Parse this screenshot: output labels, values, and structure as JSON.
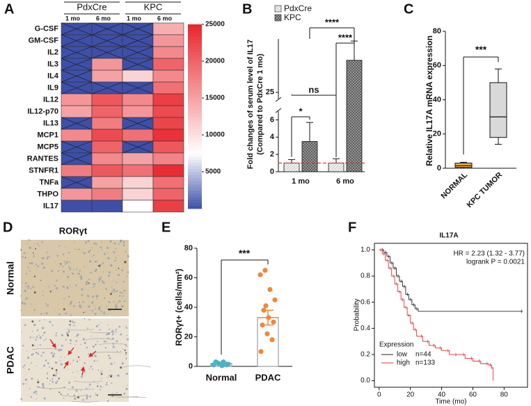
{
  "chart_data": [
    {
      "type": "heatmap",
      "panel": "A",
      "column_groups": [
        "PdxCre",
        "KPC"
      ],
      "columns": [
        "1 mo",
        "6 mo",
        "1 mo",
        "6 mo"
      ],
      "rows": [
        "G-CSF",
        "GM-CSF",
        "IL2",
        "IL3",
        "IL4",
        "IL9",
        "IL12",
        "IL12-p70",
        "IL13",
        "MCP1",
        "MCP5",
        "RANTES",
        "STNFR1",
        "TNFa",
        "THPO",
        "IL17"
      ],
      "values": [
        [
          null,
          null,
          null,
          14000
        ],
        [
          null,
          null,
          null,
          16000
        ],
        [
          null,
          null,
          null,
          17000
        ],
        [
          null,
          16000,
          null,
          20000
        ],
        [
          null,
          15000,
          11000,
          17000
        ],
        [
          null,
          null,
          null,
          19000
        ],
        [
          16000,
          21000,
          17000,
          23000
        ],
        [
          15000,
          20000,
          16000,
          22000
        ],
        [
          null,
          18000,
          null,
          22500
        ],
        [
          17000,
          22000,
          19000,
          24000
        ],
        [
          null,
          20000,
          null,
          21000
        ],
        [
          null,
          17000,
          15000,
          17500
        ],
        [
          18000,
          21000,
          19000,
          24500
        ],
        [
          null,
          15000,
          11000,
          19000
        ],
        [
          16000,
          18000,
          11000,
          20000
        ],
        [
          0,
          0,
          7500,
          23000
        ]
      ],
      "zlim": [
        0,
        25000
      ],
      "zticks": [
        5000,
        10000,
        15000,
        20000,
        25000
      ],
      "colors": [
        "#3d4fa8",
        "#ffffff",
        "#e8262d"
      ]
    },
    {
      "type": "bar",
      "panel": "B",
      "ylabel": [
        "Fold changes of serum level of IL17",
        "(Compared to PdxCre 1 mo)"
      ],
      "categories": [
        "1 mo",
        "6 mo"
      ],
      "series": [
        {
          "name": "PdxCre",
          "color": "#f0f0f0",
          "values": [
            1,
            1
          ],
          "errors": [
            0.4,
            0.5
          ]
        },
        {
          "name": "KPC",
          "color": "#5a5a5a",
          "values": [
            3.5,
            40
          ],
          "errors": [
            2.2,
            9
          ]
        }
      ],
      "ylim": [
        0,
        50
      ],
      "ybreak": [
        7,
        22
      ],
      "yticks": [
        0,
        2,
        4,
        6,
        25
      ],
      "reference_line": 1,
      "reference_color": "#d62728",
      "annotations": [
        "*",
        "ns",
        "****",
        "****"
      ]
    },
    {
      "type": "box",
      "panel": "C",
      "ylabel": "Relative IL17A mRNA expression",
      "categories": [
        "NORMAL",
        "KPC TUMOR"
      ],
      "boxes": [
        {
          "min": 0,
          "q1": 0.5,
          "median": 1.5,
          "q3": 3,
          "max": 3.5
        },
        {
          "min": 14,
          "q1": 18,
          "median": 30,
          "q3": 50,
          "max": 58
        }
      ],
      "colors": [
        "#f5b041",
        "#d9d9d9"
      ],
      "ylim": [
        0,
        80
      ],
      "yticks": [
        0,
        20,
        40,
        60,
        80
      ],
      "annotations": [
        "***"
      ]
    },
    {
      "type": "bar_scatter",
      "panel": "E",
      "ylabel": "RORγt+ (cells/mm²)",
      "categories": [
        "Normal",
        "PDAC"
      ],
      "values": [
        2,
        33
      ],
      "errors": [
        0.8,
        5
      ],
      "points": [
        [
          1,
          2,
          3,
          1.5,
          2.5,
          0.5,
          1,
          3
        ],
        [
          62,
          65,
          52,
          45,
          38,
          33,
          30,
          28,
          22,
          18,
          10,
          41
        ]
      ],
      "point_colors": [
        "#4ab3c8",
        "#f0883a"
      ],
      "ylim": [
        0,
        80
      ],
      "yticks": [
        0,
        20,
        40,
        60,
        80
      ],
      "annotations": [
        "***"
      ]
    },
    {
      "type": "line",
      "panel": "F",
      "step": true,
      "title": "IL17A",
      "xlabel": "Time (mo)",
      "ylabel": "Probability",
      "annotations": [
        "HR = 2.23 (1.32 - 3.77)",
        "logrank P = 0.0021"
      ],
      "legend_title": "Expression",
      "legend": "bottom-left",
      "series": [
        {
          "name": "low",
          "n_label": "n=44",
          "color": "#222222",
          "x": [
            0,
            3,
            5,
            7,
            9,
            11,
            13,
            15,
            17,
            19,
            21,
            23,
            25,
            92
          ],
          "values": [
            1,
            0.98,
            0.95,
            0.9,
            0.86,
            0.8,
            0.76,
            0.72,
            0.66,
            0.62,
            0.58,
            0.55,
            0.53,
            0.53
          ]
        },
        {
          "name": "high",
          "n_label": "n=133",
          "color": "#e0303a",
          "x": [
            0,
            2,
            4,
            6,
            8,
            10,
            12,
            14,
            16,
            18,
            20,
            22,
            24,
            28,
            32,
            36,
            40,
            45,
            50,
            55,
            60,
            65,
            70,
            72,
            73
          ],
          "values": [
            1,
            0.97,
            0.92,
            0.86,
            0.8,
            0.74,
            0.68,
            0.62,
            0.56,
            0.5,
            0.44,
            0.39,
            0.34,
            0.3,
            0.27,
            0.25,
            0.23,
            0.2,
            0.2,
            0.17,
            0.15,
            0.13,
            0.12,
            0.1,
            0.0
          ]
        }
      ],
      "xlim": [
        -3,
        95
      ],
      "xticks": [
        0,
        20,
        40,
        60,
        80
      ],
      "ylim": [
        -0.05,
        1.05
      ],
      "yticks": [
        {
          "value": 0,
          "label": "0.0"
        },
        {
          "value": 0.2,
          "label": "0.2"
        },
        {
          "value": 0.4,
          "label": "0.4"
        },
        {
          "value": 0.6,
          "label": "0.6"
        },
        {
          "value": 0.8,
          "label": "0.8"
        },
        {
          "value": 1,
          "label": "1.0"
        }
      ]
    }
  ],
  "image_panel": {
    "panel": "D",
    "title": "RORγt",
    "rows": [
      "Normal",
      "PDAC"
    ]
  }
}
